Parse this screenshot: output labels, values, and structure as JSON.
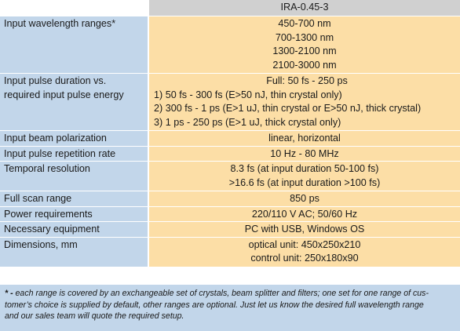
{
  "model": "IRA-0.45-3",
  "rows": [
    {
      "label": [
        "Input wavelength ranges*"
      ],
      "value": [
        "450-700 nm",
        "700-1300 nm",
        "1300-2100 nm",
        "2100-3000 nm"
      ]
    },
    {
      "label": [
        "Input pulse duration vs.",
        "required input pulse energy"
      ],
      "value": [
        "Full: 50 fs - 250 ps",
        "1) 50 fs - 300 fs (E>50 nJ, thin crystal only)",
        "2) 300 fs - 1 ps (E>1 uJ, thin crystal or E>50 nJ, thick crystal)",
        "3) 1 ps - 250 ps (E>1 uJ, thick crystal only)"
      ]
    },
    {
      "label": [
        "Input beam polarization"
      ],
      "value": [
        "linear, horizontal"
      ]
    },
    {
      "label": [
        "Input pulse repetition rate"
      ],
      "value": [
        "10 Hz - 80 MHz"
      ]
    },
    {
      "label": [
        "Temporal resolution"
      ],
      "value": [
        "8.3 fs (at input duration 50-100 fs)",
        ">16.6 fs  (at input duration >100 fs)"
      ]
    },
    {
      "label": [
        "Full scan range"
      ],
      "value": [
        "850 ps"
      ]
    },
    {
      "label": [
        "Power requirements"
      ],
      "value": [
        "220/110 V AC; 50/60 Hz"
      ]
    },
    {
      "label": [
        "Necessary equipment"
      ],
      "value": [
        "PC with USB, Windows OS"
      ]
    },
    {
      "label": [
        "Dimensions, mm"
      ],
      "value": [
        "optical unit: 450x250x210",
        "control unit: 250x180x90"
      ]
    }
  ],
  "footnote": {
    "mark": "* -",
    "lines": [
      " each range is covered by an exchangeable set of crystals, beam splitter and filters; one set for one range of cus-",
      "tomer’s choice is supplied by default, other ranges are optional. Just let us know the desired full wavelength range",
      "and our sales team will quote the required setup."
    ]
  }
}
